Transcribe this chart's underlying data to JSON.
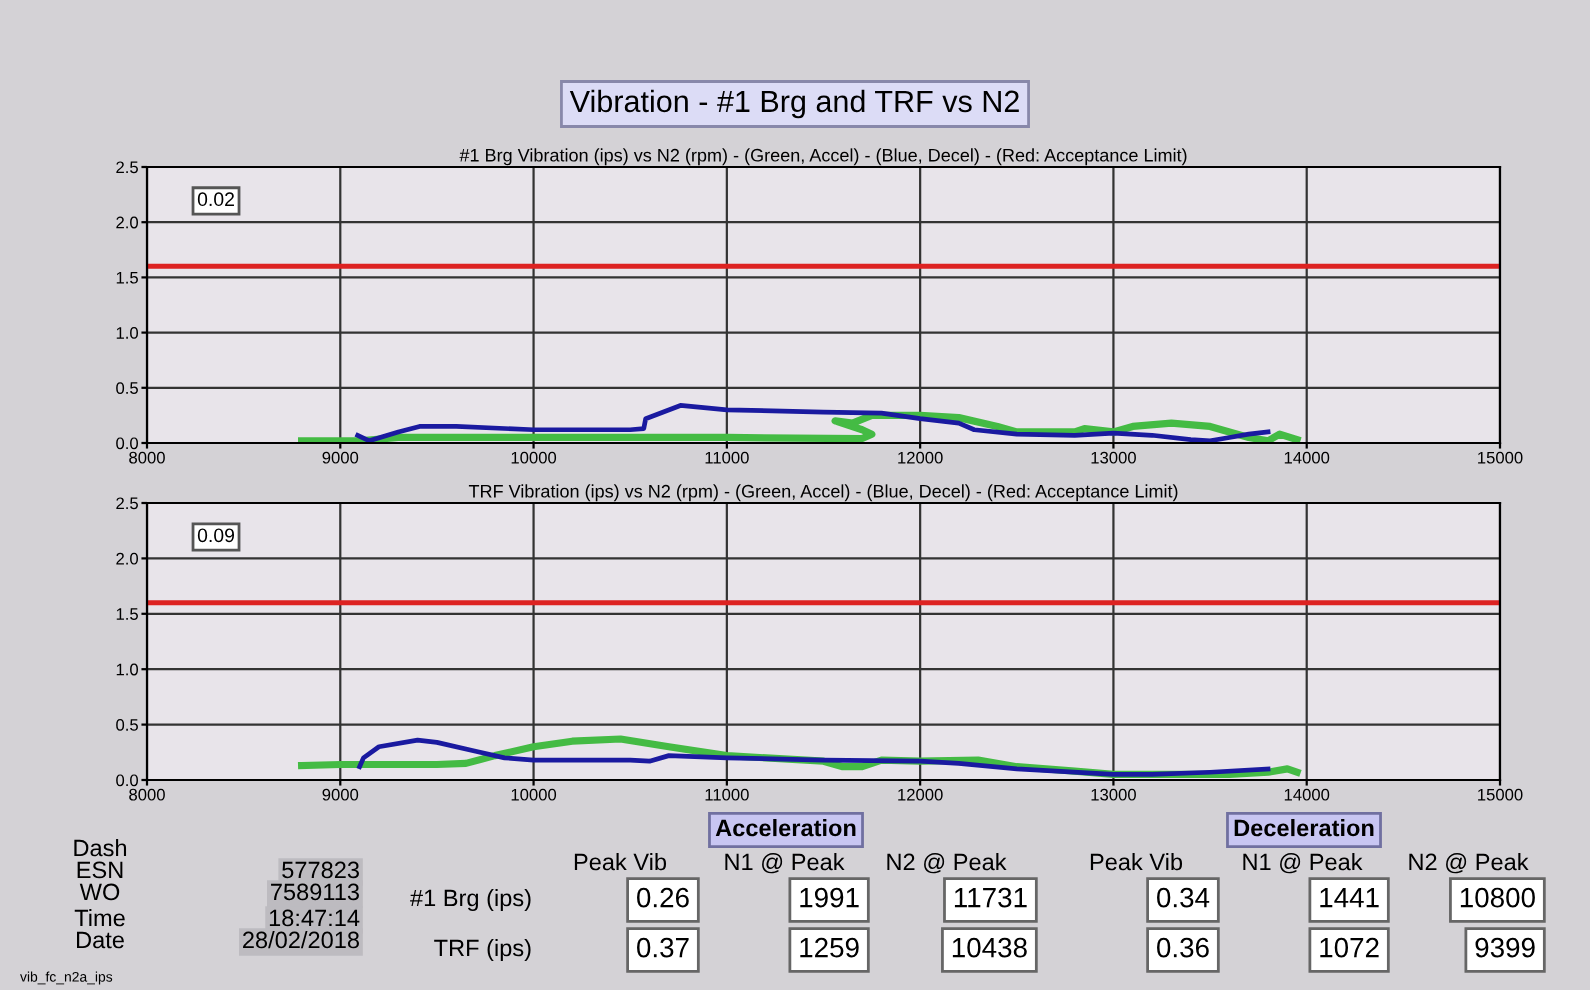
{
  "chart_data": [
    {
      "type": "line",
      "title": "Vibration - #1 Brg and TRF vs N2",
      "subtitle": "#1 Brg Vibration (ips) vs N2 (rpm) - (Green, Accel) - (Blue, Decel) - (Red: Acceptance Limit)",
      "annotations": [
        "0.02"
      ],
      "xlim": [
        8000,
        15000
      ],
      "xticks": [
        8000,
        9000,
        10000,
        11000,
        12000,
        13000,
        14000,
        15000
      ],
      "ylim": [
        0,
        2.5
      ],
      "yticks": [
        {
          "value": 0,
          "label": "0.0"
        },
        {
          "value": 0.5,
          "label": "0.5"
        },
        {
          "value": 1,
          "label": "1.0"
        },
        {
          "value": 1.5,
          "label": "1.5"
        },
        {
          "value": 2,
          "label": "2.0"
        },
        {
          "value": 2.5,
          "label": "2.5"
        }
      ],
      "grid": true,
      "ref_lines": [
        {
          "axis": "y",
          "value": 1.6,
          "color": "#dd2222"
        }
      ],
      "series": [
        {
          "color": "#44bb44",
          "x": [
            8800,
            9100,
            9300,
            10000,
            11000,
            11700,
            11750,
            11700,
            11560,
            11650,
            11750,
            12000,
            12200,
            12400,
            12500,
            12800,
            12850,
            13000,
            13100,
            13300,
            13500,
            13600,
            13700,
            13800,
            13860,
            13950
          ],
          "values": [
            0.02,
            0.02,
            0.05,
            0.05,
            0.05,
            0.04,
            0.08,
            0.12,
            0.2,
            0.18,
            0.25,
            0.25,
            0.23,
            0.15,
            0.1,
            0.1,
            0.13,
            0.1,
            0.15,
            0.18,
            0.15,
            0.1,
            0.05,
            0.02,
            0.08,
            0.03
          ]
        },
        {
          "color": "#1a1aa0",
          "x": [
            9090,
            9150,
            9300,
            9410,
            9600,
            10000,
            10500,
            10570,
            10580,
            10760,
            11000,
            11500,
            11800,
            12000,
            12200,
            12280,
            12500,
            12800,
            13000,
            13200,
            13400,
            13500,
            13600,
            13700,
            13800
          ],
          "values": [
            0.07,
            0.02,
            0.1,
            0.15,
            0.15,
            0.12,
            0.12,
            0.13,
            0.22,
            0.34,
            0.3,
            0.28,
            0.27,
            0.22,
            0.18,
            0.12,
            0.08,
            0.07,
            0.09,
            0.07,
            0.03,
            0.02,
            0.05,
            0.08,
            0.1
          ]
        }
      ]
    },
    {
      "type": "line",
      "subtitle": "TRF Vibration (ips) vs N2 (rpm) - (Green, Accel) - (Blue, Decel) - (Red: Acceptance Limit)",
      "annotations": [
        "0.09"
      ],
      "xlim": [
        8000,
        15000
      ],
      "xticks": [
        8000,
        9000,
        10000,
        11000,
        12000,
        13000,
        14000,
        15000
      ],
      "ylim": [
        0,
        2.5
      ],
      "yticks": [
        {
          "value": 0,
          "label": "0.0"
        },
        {
          "value": 0.5,
          "label": "0.5"
        },
        {
          "value": 1,
          "label": "1.0"
        },
        {
          "value": 1.5,
          "label": "1.5"
        },
        {
          "value": 2,
          "label": "2.0"
        },
        {
          "value": 2.5,
          "label": "2.5"
        }
      ],
      "grid": true,
      "ref_lines": [
        {
          "axis": "y",
          "value": 1.6,
          "color": "#dd2222"
        }
      ],
      "series": [
        {
          "color": "#44bb44",
          "x": [
            8800,
            9000,
            9500,
            9650,
            9800,
            10000,
            10200,
            10450,
            10700,
            11000,
            11500,
            11600,
            11700,
            11750,
            11800,
            12000,
            12300,
            12500,
            12800,
            13000,
            13300,
            13600,
            13800,
            13900,
            13950
          ],
          "values": [
            0.13,
            0.14,
            0.14,
            0.15,
            0.22,
            0.3,
            0.35,
            0.37,
            0.3,
            0.22,
            0.17,
            0.12,
            0.12,
            0.15,
            0.18,
            0.17,
            0.18,
            0.12,
            0.08,
            0.05,
            0.05,
            0.05,
            0.07,
            0.1,
            0.07
          ]
        },
        {
          "color": "#1a1aa0",
          "x": [
            9100,
            9120,
            9200,
            9400,
            9500,
            9700,
            9850,
            10000,
            10500,
            10600,
            10700,
            11000,
            11500,
            12000,
            12200,
            12500,
            13000,
            13200,
            13500,
            13800
          ],
          "values": [
            0.12,
            0.2,
            0.3,
            0.36,
            0.34,
            0.26,
            0.2,
            0.18,
            0.18,
            0.17,
            0.22,
            0.2,
            0.18,
            0.17,
            0.15,
            0.1,
            0.05,
            0.05,
            0.07,
            0.1
          ]
        }
      ]
    },
    {
      "type": "other",
      "annotations": [
        "Dash",
        "ESN",
        "577823",
        "WO",
        "7589113",
        "Time",
        "18:47:14",
        "Date",
        "28/02/2018",
        "Acceleration",
        "Deceleration",
        "Peak Vib",
        "N1 @ Peak",
        "N2 @ Peak",
        "Peak Vib",
        "N1 @ Peak",
        "N2 @ Peak",
        "#1 Brg (ips)",
        "0.26",
        "1991",
        "11731",
        "0.34",
        "1441",
        "10800",
        "TRF (ips)",
        "0.37",
        "1259",
        "10438",
        "0.36",
        "1072",
        "9399",
        "vib_fc_n2a_ips"
      ]
    }
  ]
}
